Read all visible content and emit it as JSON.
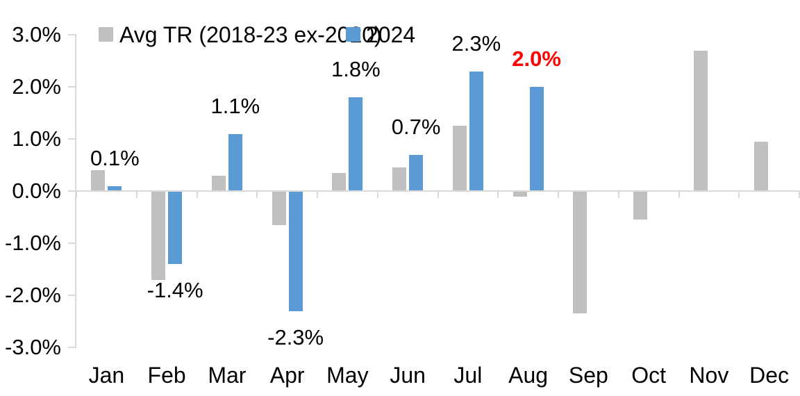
{
  "chart_data": {
    "type": "bar",
    "title": "",
    "categories": [
      "Jan",
      "Feb",
      "Mar",
      "Apr",
      "May",
      "Jun",
      "Jul",
      "Aug",
      "Sep",
      "Oct",
      "Nov",
      "Dec"
    ],
    "series": [
      {
        "name": "Avg TR (2018-23 ex-2020)",
        "color": "#BFBFBF",
        "values": [
          0.4,
          -1.7,
          0.3,
          -0.65,
          0.35,
          0.45,
          1.25,
          -0.1,
          -2.35,
          -0.55,
          2.7,
          0.95
        ]
      },
      {
        "name": "2024",
        "color": "#5B9BD5",
        "values": [
          0.1,
          -1.4,
          1.1,
          -2.3,
          1.8,
          0.7,
          2.3,
          2.0,
          null,
          null,
          null,
          null
        ]
      }
    ],
    "data_labels": [
      {
        "month_index": 0,
        "text": "0.1%",
        "color": "#000000",
        "bold": false
      },
      {
        "month_index": 1,
        "text": "-1.4%",
        "color": "#000000",
        "bold": false
      },
      {
        "month_index": 2,
        "text": "1.1%",
        "color": "#000000",
        "bold": false
      },
      {
        "month_index": 3,
        "text": "-2.3%",
        "color": "#000000",
        "bold": false
      },
      {
        "month_index": 4,
        "text": "1.8%",
        "color": "#000000",
        "bold": false
      },
      {
        "month_index": 5,
        "text": "0.7%",
        "color": "#000000",
        "bold": false
      },
      {
        "month_index": 6,
        "text": "2.3%",
        "color": "#000000",
        "bold": false
      },
      {
        "month_index": 7,
        "text": "2.0%",
        "color": "#FF0000",
        "bold": true
      }
    ],
    "y_ticks": [
      {
        "value": 3,
        "label": "3.0%"
      },
      {
        "value": 2,
        "label": "2.0%"
      },
      {
        "value": 1,
        "label": "1.0%"
      },
      {
        "value": 0,
        "label": "0.0%"
      },
      {
        "value": -1,
        "label": "-1.0%"
      },
      {
        "value": -2,
        "label": "-2.0%"
      },
      {
        "value": -3,
        "label": "-3.0%"
      }
    ],
    "ylim": [
      -3.0,
      3.0
    ],
    "grid": false,
    "legend_position": "top",
    "axis_color": "#D9D9D9",
    "text_color": "#000000"
  }
}
